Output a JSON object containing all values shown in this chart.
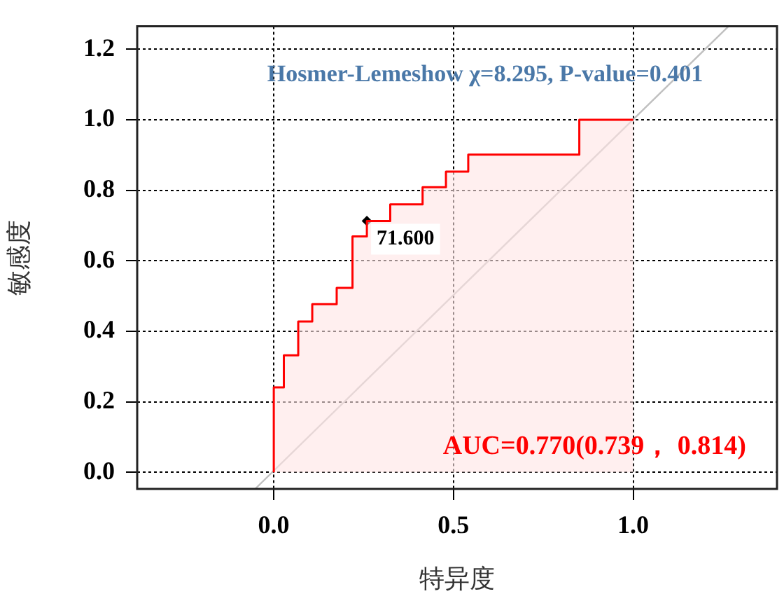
{
  "chart_data": {
    "type": "step",
    "xlabel": "特异度",
    "ylabel": "敏感度",
    "annotations": [
      "Hosmer-Lemeshow χ=8.295, P-value=0.401",
      "AUC=0.770(0.739， 0.814)",
      {
        "text": "71.600",
        "x": 0.259,
        "y": 0.713
      }
    ],
    "xlim": [
      -0.38,
      1.4
    ],
    "ylim": [
      -0.047,
      1.265
    ],
    "xticks": [
      {
        "value": 0,
        "label": "0.0"
      },
      {
        "value": 0.5,
        "label": "0.5"
      },
      {
        "value": 1,
        "label": "1.0"
      }
    ],
    "yticks": [
      {
        "value": 0,
        "label": "0.0"
      },
      {
        "value": 0.2,
        "label": "0.2"
      },
      {
        "value": 0.4,
        "label": "0.4"
      },
      {
        "value": 0.6,
        "label": "0.6"
      },
      {
        "value": 0.8,
        "label": "0.8"
      },
      {
        "value": 1,
        "label": "1.0"
      },
      {
        "value": 1.2,
        "label": "1.2"
      }
    ],
    "grid": true,
    "line_style": "solid",
    "series": [
      {
        "color": "#ff0000",
        "x": [
          0,
          0,
          0.028,
          0.068,
          0.107,
          0.175,
          0.219,
          0.259,
          0.324,
          0.414,
          0.479,
          0.541,
          0.85,
          1.0
        ],
        "values": [
          0,
          0.241,
          0.332,
          0.428,
          0.477,
          0.523,
          0.669,
          0.713,
          0.76,
          0.809,
          0.853,
          0.901,
          1.0,
          1.0
        ]
      },
      {
        "type": "line",
        "color": "#c0c0c0",
        "x": [
          -0.052,
          1.265
        ],
        "values": [
          -0.047,
          1.265
        ]
      },
      {
        "type": "scatter",
        "color": "#000000",
        "marker": "diamond",
        "x": [
          0.259
        ],
        "values": [
          0.713
        ]
      }
    ]
  }
}
